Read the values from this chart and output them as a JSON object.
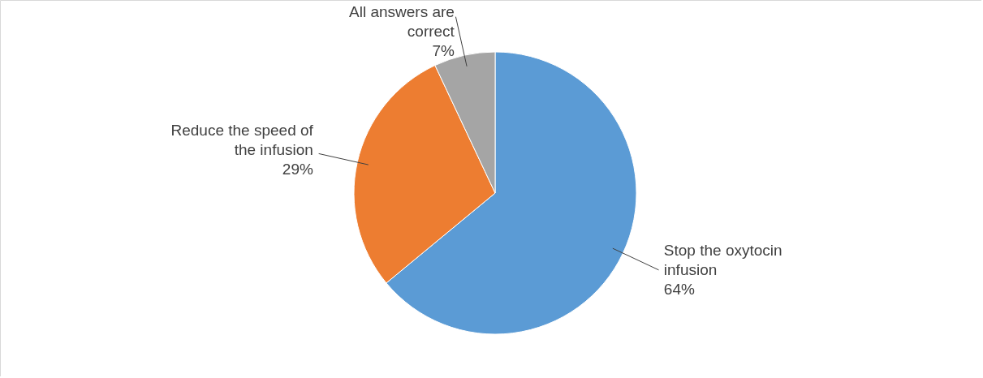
{
  "chart_data": {
    "type": "pie",
    "categories": [
      "Stop the oxytocin infusion",
      "Reduce the speed of the infusion",
      "All answers are correct"
    ],
    "values": [
      64,
      29,
      7
    ],
    "colors": [
      "#5b9bd5",
      "#ed7d31",
      "#a5a5a5"
    ],
    "value_labels": [
      "64%",
      "29%",
      "7%"
    ]
  }
}
